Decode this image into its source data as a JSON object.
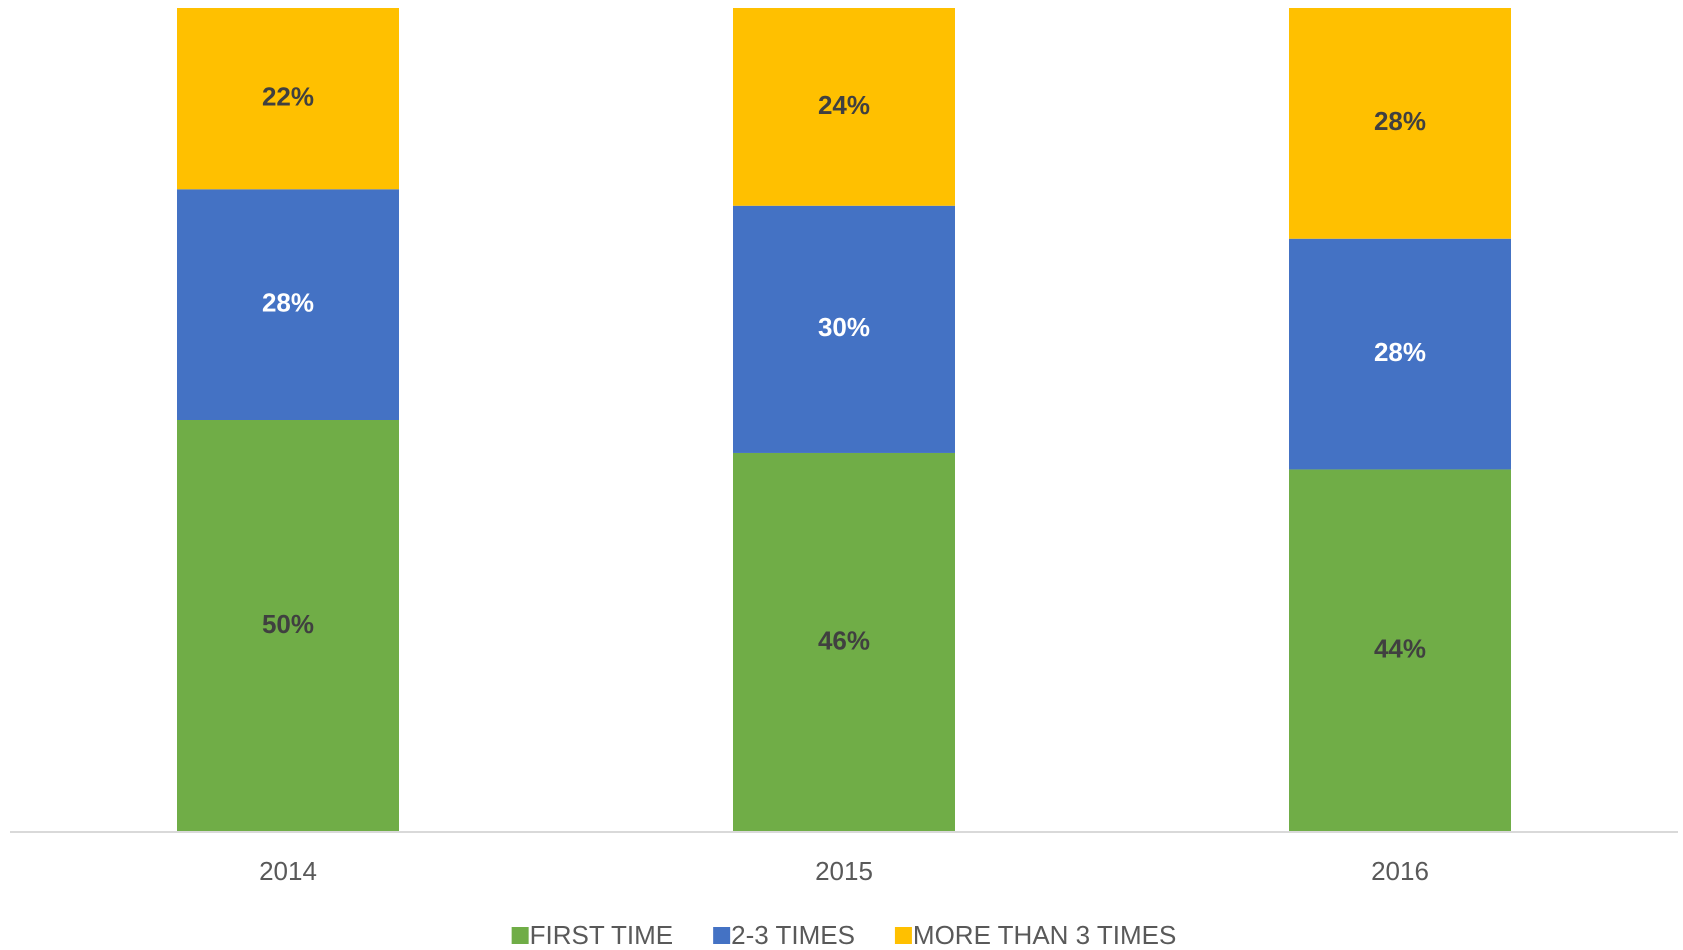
{
  "chart_data": {
    "type": "stacked_bar",
    "categories": [
      "2014",
      "2015",
      "2016"
    ],
    "series": [
      {
        "name": "FIRST TIME",
        "color": "#70ad47",
        "values": [
          50,
          46,
          44
        ],
        "value_labels": [
          "50%",
          "46%",
          "44%"
        ]
      },
      {
        "name": "2-3 TIMES",
        "color": "#4472c4",
        "values": [
          28,
          30,
          28
        ],
        "value_labels": [
          "28%",
          "30%",
          "28%"
        ]
      },
      {
        "name": "MORE THAN 3 TIMES",
        "color": "#ffc000",
        "values": [
          22,
          24,
          28
        ],
        "value_labels": [
          "22%",
          "24%",
          "28%"
        ]
      }
    ],
    "ylim": [
      0,
      100
    ],
    "legend": "bottom"
  }
}
